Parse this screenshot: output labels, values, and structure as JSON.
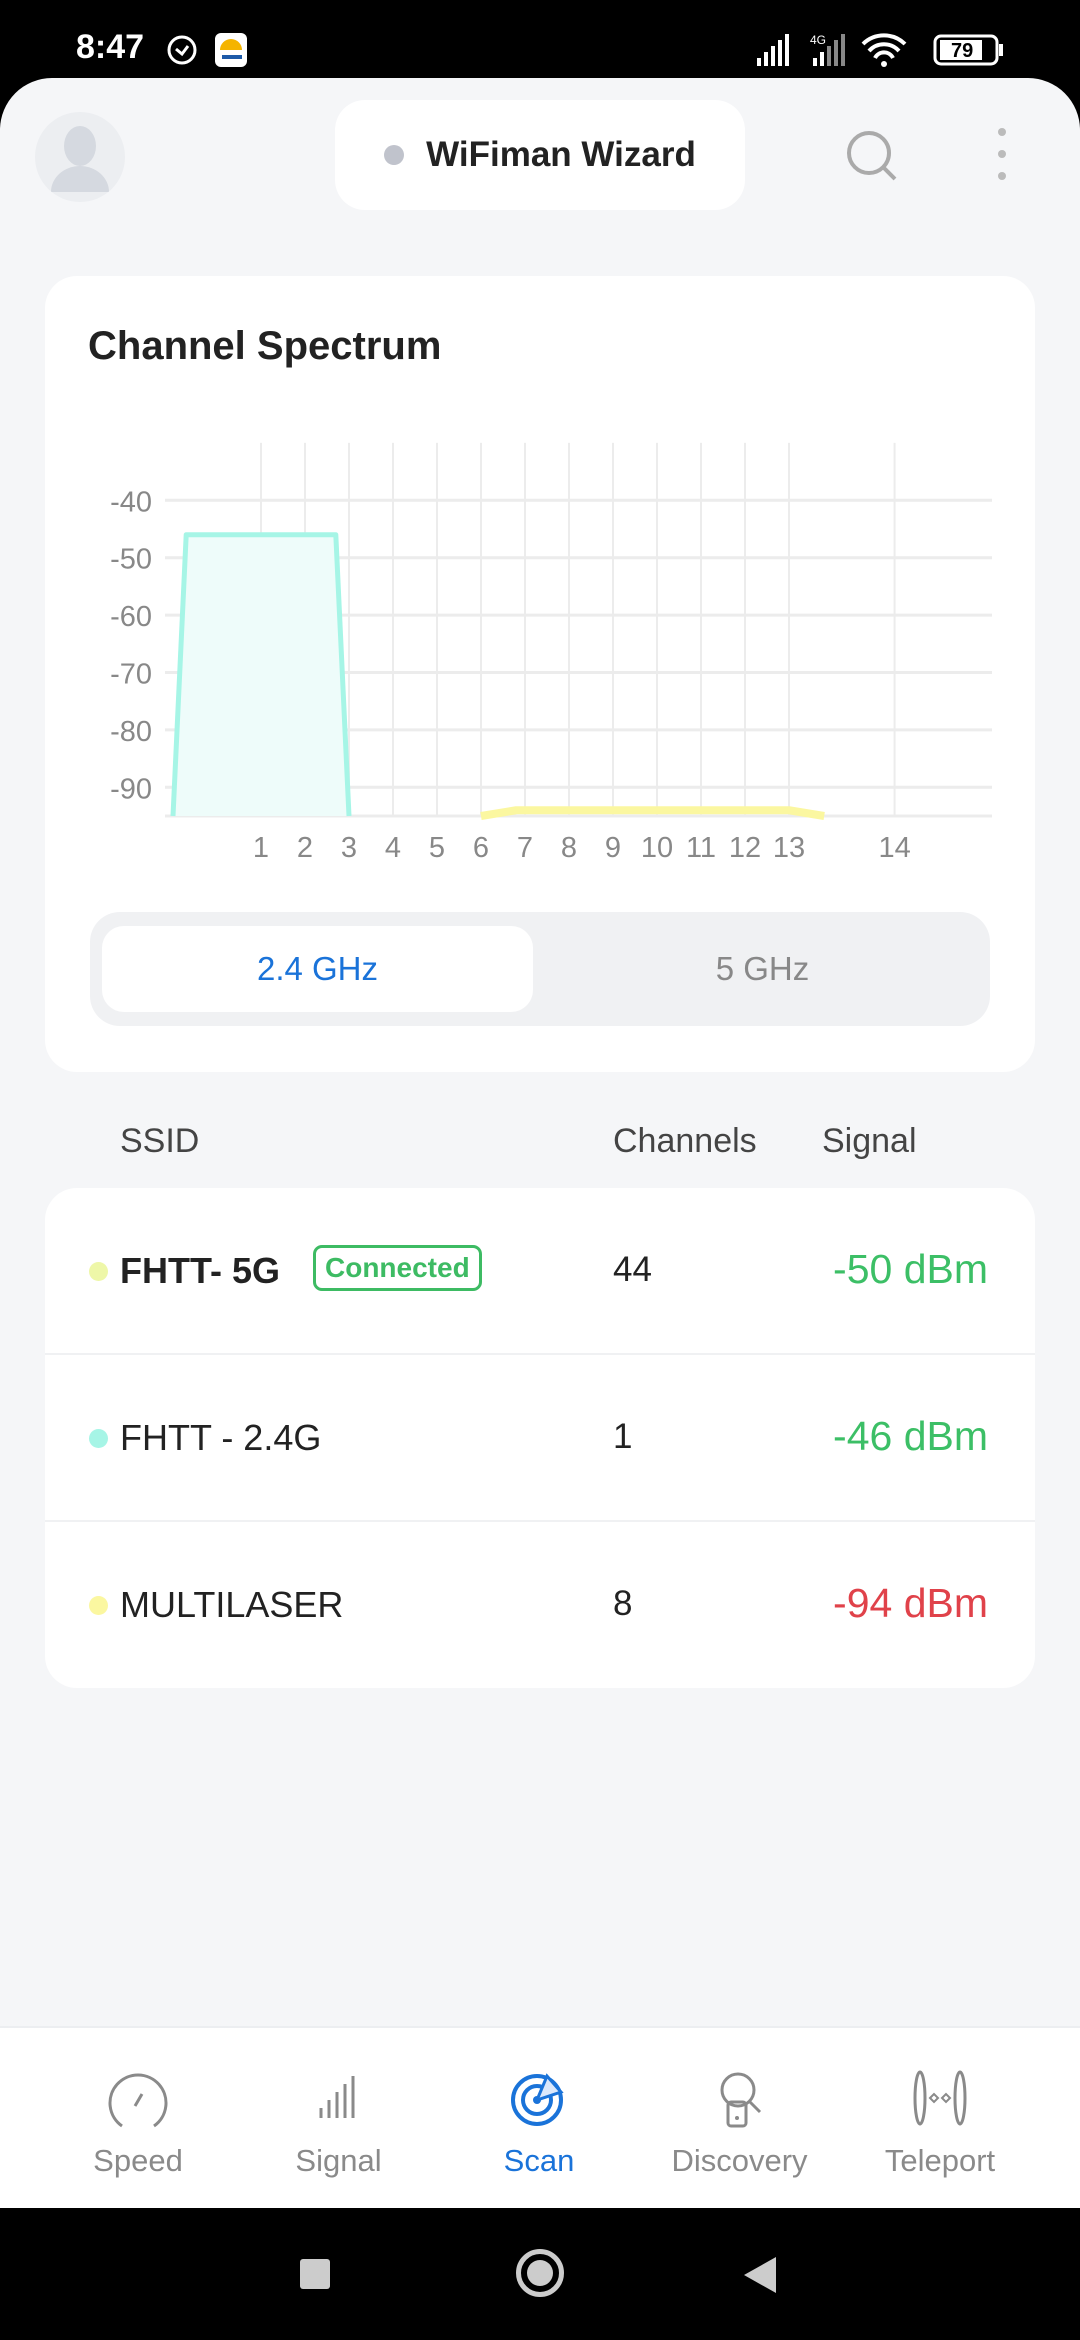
{
  "status_bar": {
    "time": "8:47",
    "battery": "79",
    "network": "4G"
  },
  "header": {
    "title": "WiFiman Wizard",
    "icons": [
      "avatar-icon",
      "search-icon",
      "more-vert-icon"
    ]
  },
  "spectrum": {
    "title": "Channel Spectrum",
    "bands": [
      {
        "label": "2.4 GHz",
        "selected": true
      },
      {
        "label": "5 GHz",
        "selected": false
      }
    ],
    "accent": "#1a73d9"
  },
  "chart_data": {
    "type": "area",
    "title": "Channel Spectrum",
    "xlabel": "",
    "ylabel": "",
    "x_ticks": [
      "1",
      "2",
      "3",
      "4",
      "5",
      "6",
      "7",
      "8",
      "9",
      "10",
      "11",
      "12",
      "13",
      "14"
    ],
    "y_ticks": [
      "-40",
      "-50",
      "-60",
      "-70",
      "-80",
      "-90"
    ],
    "ylim": [
      -95,
      -30
    ],
    "grid": true,
    "series": [
      {
        "name": "FHTT - 2.4G",
        "color": "#a6f5e6",
        "fill": "#eefcfa",
        "points": [
          [
            -1,
            -95
          ],
          [
            -0.7,
            -46
          ],
          [
            2.7,
            -46
          ],
          [
            3,
            -95
          ]
        ]
      },
      {
        "name": "MULTILASER",
        "color": "#fbf7a0",
        "fill": "none",
        "points": [
          [
            6,
            -95
          ],
          [
            6.8,
            -94
          ],
          [
            13,
            -94
          ],
          [
            13.8,
            -95
          ]
        ]
      }
    ]
  },
  "table": {
    "headers": {
      "ssid": "SSID",
      "channels": "Channels",
      "signal": "Signal"
    },
    "rows": [
      {
        "ssid": "FHTT- 5G",
        "badge": "Connected",
        "channel": "44",
        "signal": "-50 dBm",
        "dot": "#eef7a8",
        "signal_color": "#3cbf66",
        "bold": true
      },
      {
        "ssid": "FHTT - 2.4G",
        "badge": "",
        "channel": "1",
        "signal": "-46 dBm",
        "dot": "#a6f5e6",
        "signal_color": "#3cbf66",
        "bold": false
      },
      {
        "ssid": "MULTILASER",
        "badge": "",
        "channel": "8",
        "signal": "-94 dBm",
        "dot": "#fbf7a0",
        "signal_color": "#e0424a",
        "bold": false
      }
    ]
  },
  "nav": {
    "items": [
      {
        "label": "Speed",
        "icon": "speedometer-icon",
        "active": false
      },
      {
        "label": "Signal",
        "icon": "signal-bars-icon",
        "active": false
      },
      {
        "label": "Scan",
        "icon": "radar-icon",
        "active": true
      },
      {
        "label": "Discovery",
        "icon": "discovery-icon",
        "active": false
      },
      {
        "label": "Teleport",
        "icon": "teleport-icon",
        "active": false
      }
    ]
  }
}
